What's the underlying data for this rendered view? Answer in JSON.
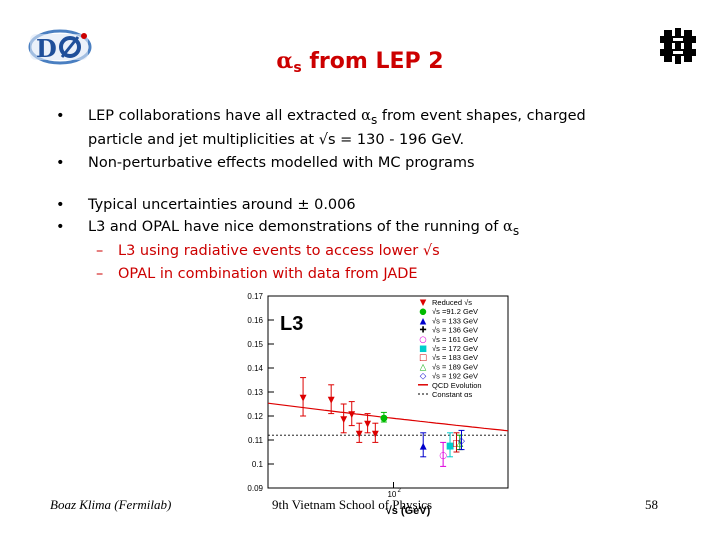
{
  "slide": {
    "title_alpha": "α",
    "title_sub": "s",
    "title_rest": " from LEP 2",
    "logos": {
      "left": "d0-logo-icon",
      "right": "fermilab-logo-icon"
    }
  },
  "bullets_1": [
    {
      "line1_a": "LEP collaborations have all extracted ",
      "line1_alpha": "α",
      "line1_sub": "s",
      "line1_b": " from event shapes, charged",
      "line2_a": "particle and jet multiplicities at ",
      "line2_sqrt": "√",
      "line2_b": "s = 130 - 196 GeV."
    },
    {
      "text": "Non-perturbative effects modelled with MC programs"
    }
  ],
  "bullets_2": [
    {
      "text_a": "Typical uncertainties around ",
      "pm": "±",
      "text_b": " 0.006"
    },
    {
      "text_a": "L3 and OPAL have nice demonstrations of the running of ",
      "alpha": "α",
      "sub": "s"
    }
  ],
  "sub_bullets": [
    {
      "dash": "–",
      "text_a": "L3 using radiative events to access lower ",
      "sqrt": "√",
      "text_b": "s"
    },
    {
      "dash": "–",
      "text": "OPAL in combination with data from JADE"
    }
  ],
  "footer": {
    "left": "Boaz Klima (Fermilab)",
    "center": "9th Vietnam School of Physics",
    "right": "58"
  },
  "chart_data": {
    "type": "scatter",
    "title": "L3",
    "xlabel": "√s (GeV)",
    "y_ticks": [
      "0.17",
      "0.16",
      "0.15",
      "0.14",
      "0.13",
      "0.12",
      "0.11",
      "0.1",
      "0.09"
    ],
    "ylim": [
      0.09,
      0.17
    ],
    "x_tick_label": "10",
    "x_tick_exp": "2",
    "legend_placement": "top-right",
    "legend": [
      {
        "symbol": "▼",
        "color": "#dd0000",
        "label": "Reduced √s"
      },
      {
        "symbol": "●",
        "color": "#00bb00",
        "label": "√s =91.2 GeV"
      },
      {
        "symbol": "▲",
        "color": "#0000cc",
        "label": "√s = 133 GeV"
      },
      {
        "symbol": "✚",
        "color": "#000000",
        "label": "√s = 136 GeV"
      },
      {
        "symbol": "○",
        "color": "#dd00dd",
        "label": "√s = 161 GeV"
      },
      {
        "symbol": "■",
        "color": "#00cccc",
        "label": "√s = 172 GeV"
      },
      {
        "symbol": "□",
        "color": "#cc0000",
        "label": "√s = 183 GeV"
      },
      {
        "symbol": "△",
        "color": "#00aa00",
        "label": "√s = 189 GeV"
      },
      {
        "symbol": "◇",
        "color": "#0000cc",
        "label": "√s = 192 GeV"
      },
      {
        "symbol": "line",
        "color": "#dd0000",
        "label": "QCD Evolution"
      },
      {
        "symbol": "dash",
        "color": "#000000",
        "label": "Constant αs"
      }
    ],
    "constant_value": 0.112,
    "series": [
      {
        "name": "Reduced √s",
        "points": [
          {
            "x": 42,
            "y": 0.128,
            "err": 0.008
          },
          {
            "x": 55,
            "y": 0.127,
            "err": 0.006
          },
          {
            "x": 62,
            "y": 0.119,
            "err": 0.006
          },
          {
            "x": 67,
            "y": 0.121,
            "err": 0.005
          },
          {
            "x": 72,
            "y": 0.113,
            "err": 0.004
          },
          {
            "x": 78,
            "y": 0.117,
            "err": 0.004
          },
          {
            "x": 84,
            "y": 0.113,
            "err": 0.004
          }
        ]
      },
      {
        "name": "√s =91.2 GeV",
        "points": [
          {
            "x": 91.2,
            "y": 0.1195,
            "err": 0.002
          }
        ]
      },
      {
        "name": "√s = 133 GeV",
        "points": [
          {
            "x": 133,
            "y": 0.108,
            "err": 0.005
          }
        ]
      },
      {
        "name": "√s = 161 GeV",
        "points": [
          {
            "x": 161,
            "y": 0.104,
            "err": 0.005
          }
        ]
      },
      {
        "name": "√s = 172 GeV",
        "points": [
          {
            "x": 172,
            "y": 0.108,
            "err": 0.005
          }
        ]
      },
      {
        "name": "√s = 183 GeV",
        "points": [
          {
            "x": 183,
            "y": 0.109,
            "err": 0.004
          }
        ]
      },
      {
        "name": "√s = 189 GeV",
        "points": [
          {
            "x": 189,
            "y": 0.109,
            "err": 0.003
          }
        ]
      },
      {
        "name": "√s = 192 GeV",
        "points": [
          {
            "x": 192,
            "y": 0.11,
            "err": 0.004
          }
        ]
      }
    ]
  }
}
